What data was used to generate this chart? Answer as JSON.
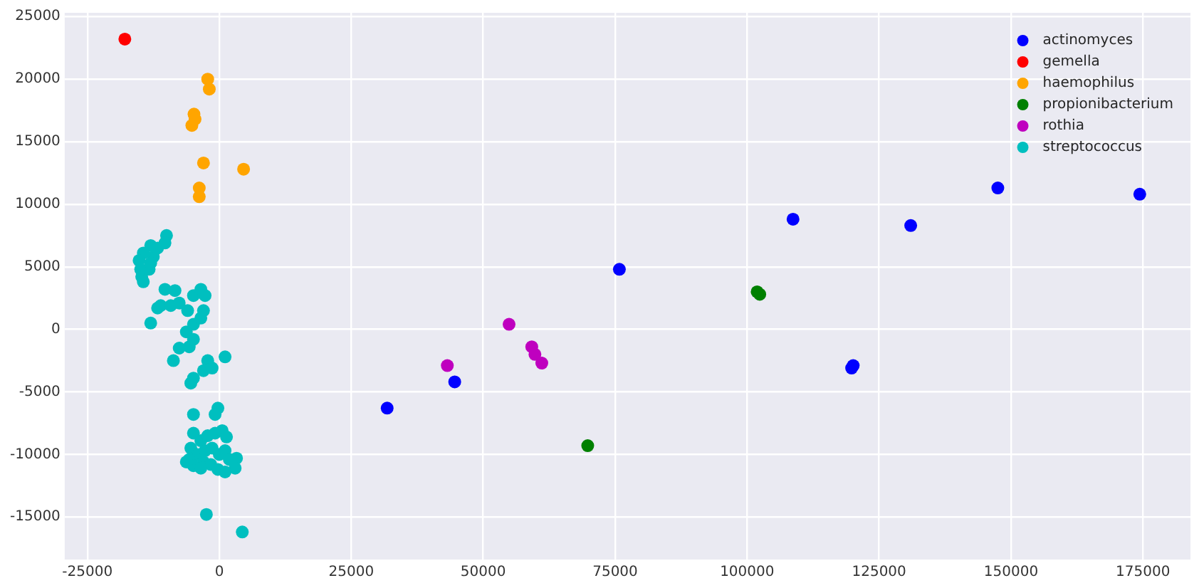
{
  "chart_data": {
    "type": "scatter",
    "xlim": [
      -29300,
      184000
    ],
    "ylim": [
      -18400,
      25300
    ],
    "xticks": [
      -25000,
      0,
      25000,
      50000,
      75000,
      100000,
      125000,
      150000,
      175000
    ],
    "yticks": [
      -15000,
      -10000,
      -5000,
      0,
      5000,
      10000,
      15000,
      20000,
      25000
    ],
    "grid": true,
    "legend": "top right",
    "marker": "circle",
    "series": [
      {
        "name": "actinomyces",
        "color": "#0000ff",
        "x": [
          31800,
          44600,
          75800,
          108700,
          119800,
          120100,
          131000,
          147500,
          174400
        ],
        "values": [
          -6300,
          -4200,
          4800,
          8800,
          -3100,
          -2900,
          8300,
          11300,
          10800
        ]
      },
      {
        "name": "gemella",
        "color": "#ff0000",
        "x": [
          -17900
        ],
        "values": [
          23200
        ]
      },
      {
        "name": "haemophilus",
        "color": "#ffa500",
        "x": [
          -2200,
          -1900,
          -4800,
          -5200,
          -4600,
          -3000,
          4600,
          -3800,
          -3800
        ],
        "values": [
          20000,
          19200,
          17200,
          16300,
          16800,
          13300,
          12800,
          11300,
          10600
        ]
      },
      {
        "name": "propionibacterium",
        "color": "#008000",
        "x": [
          101900,
          102400,
          69800
        ],
        "values": [
          3000,
          2800,
          -9300
        ]
      },
      {
        "name": "rothia",
        "color": "#bf00bf",
        "x": [
          43200,
          54900,
          59200,
          59800,
          61100
        ],
        "values": [
          -2900,
          400,
          -1400,
          -2000,
          -2700
        ]
      },
      {
        "name": "streptococcus",
        "color": "#00bfbf",
        "x": [
          -10000,
          -10300,
          -13000,
          -14400,
          -15200,
          -14900,
          -14700,
          -13300,
          -12500,
          -11700,
          -14400,
          -13000,
          -10300,
          -8400,
          -11700,
          -13000,
          -11100,
          -9200,
          -7600,
          -6000,
          -4900,
          -3500,
          -2700,
          -3000,
          -4900,
          -6250,
          -5700,
          -4900,
          -3500,
          -8700,
          -7600,
          -2200,
          -4900,
          -3000,
          -1360,
          1090,
          -5400,
          -4900,
          -270,
          -800,
          -4900,
          -3500,
          -2200,
          -800,
          540,
          1360,
          -5400,
          -4100,
          -2700,
          -1360,
          0,
          1090,
          -5700,
          -4900,
          -3000,
          -1630,
          -270,
          1900,
          3260,
          3000,
          1090,
          -3500,
          -6250,
          -2450,
          4350
        ],
        "values": [
          7500,
          6900,
          6700,
          6100,
          5500,
          4800,
          4200,
          4800,
          5800,
          6500,
          3800,
          5300,
          3200,
          3100,
          1700,
          500,
          1900,
          1900,
          2100,
          1500,
          2700,
          3200,
          2700,
          1500,
          400,
          -200,
          -1400,
          -800,
          900,
          -2500,
          -1500,
          -2500,
          -3900,
          -3300,
          -3100,
          -2200,
          -4300,
          -6800,
          -6300,
          -6800,
          -8300,
          -8900,
          -8500,
          -8300,
          -8100,
          -8600,
          -9500,
          -10000,
          -9700,
          -9500,
          -10000,
          -9700,
          -10400,
          -10900,
          -10600,
          -10800,
          -11200,
          -10400,
          -10300,
          -11100,
          -11400,
          -11100,
          -10600,
          -14800,
          -16200
        ]
      }
    ]
  }
}
